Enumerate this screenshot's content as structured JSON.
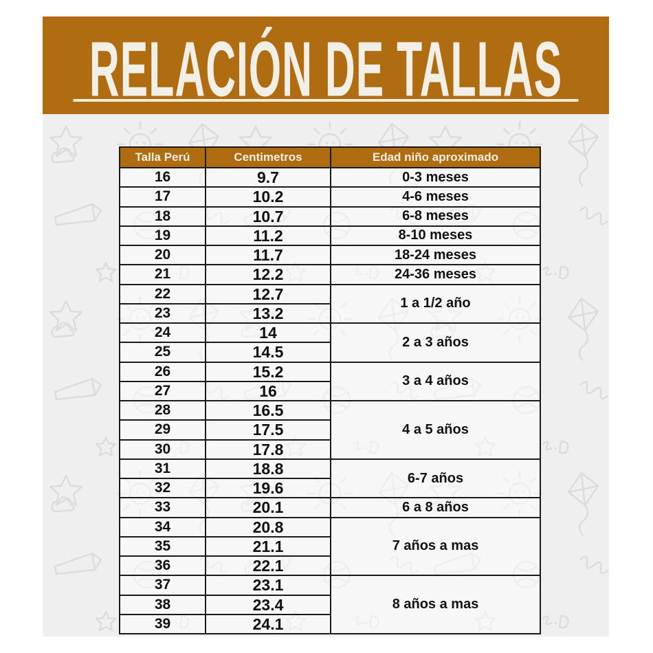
{
  "banner": {
    "title": "RELACIÓN DE TALLAS"
  },
  "colors": {
    "banner_bg": "#B06C10",
    "banner_text": "#F2EFE6",
    "underline": "#EFE9D8",
    "doodle_bg": "#EFEFEF",
    "doodle_line": "#DCDCDC",
    "border": "#1A1A1A",
    "cell_text": "#111111"
  },
  "table": {
    "headers": [
      "Talla Perú",
      "Centimetros",
      "Edad niño aproximado"
    ],
    "rows": [
      {
        "talla": "16",
        "cm": "9.7"
      },
      {
        "talla": "17",
        "cm": "10.2"
      },
      {
        "talla": "18",
        "cm": "10.7"
      },
      {
        "talla": "19",
        "cm": "11.2"
      },
      {
        "talla": "20",
        "cm": "11.7"
      },
      {
        "talla": "21",
        "cm": "12.2"
      },
      {
        "talla": "22",
        "cm": "12.7"
      },
      {
        "talla": "23",
        "cm": "13.2"
      },
      {
        "talla": "24",
        "cm": "14"
      },
      {
        "talla": "25",
        "cm": "14.5"
      },
      {
        "talla": "26",
        "cm": "15.2"
      },
      {
        "talla": "27",
        "cm": "16"
      },
      {
        "talla": "28",
        "cm": "16.5"
      },
      {
        "talla": "29",
        "cm": "17.5"
      },
      {
        "talla": "30",
        "cm": "17.8"
      },
      {
        "talla": "31",
        "cm": "18.8"
      },
      {
        "talla": "32",
        "cm": "19.6"
      },
      {
        "talla": "33",
        "cm": "20.1"
      },
      {
        "talla": "34",
        "cm": "20.8"
      },
      {
        "talla": "35",
        "cm": "21.1"
      },
      {
        "talla": "36",
        "cm": "22.1"
      },
      {
        "talla": "37",
        "cm": "23.1"
      },
      {
        "talla": "38",
        "cm": "23.4"
      },
      {
        "talla": "39",
        "cm": "24.1"
      }
    ],
    "age_groups": [
      {
        "label": "0-3 meses",
        "start": 0,
        "span": 1
      },
      {
        "label": "4-6 meses",
        "start": 1,
        "span": 1
      },
      {
        "label": "6-8 meses",
        "start": 2,
        "span": 1
      },
      {
        "label": "8-10 meses",
        "start": 3,
        "span": 1
      },
      {
        "label": "18-24 meses",
        "start": 4,
        "span": 1
      },
      {
        "label": "24-36 meses",
        "start": 5,
        "span": 1
      },
      {
        "label": "1 a 1/2 año",
        "start": 6,
        "span": 2
      },
      {
        "label": "2 a 3 años",
        "start": 8,
        "span": 2
      },
      {
        "label": "3 a 4 años",
        "start": 10,
        "span": 2
      },
      {
        "label": "4 a 5 años",
        "start": 12,
        "span": 3
      },
      {
        "label": "6-7 años",
        "start": 15,
        "span": 2
      },
      {
        "label": "6 a 8 años",
        "start": 17,
        "span": 1
      },
      {
        "label": "7 años a mas",
        "start": 18,
        "span": 3
      },
      {
        "label": "8 años a mas",
        "start": 21,
        "span": 3
      }
    ]
  }
}
